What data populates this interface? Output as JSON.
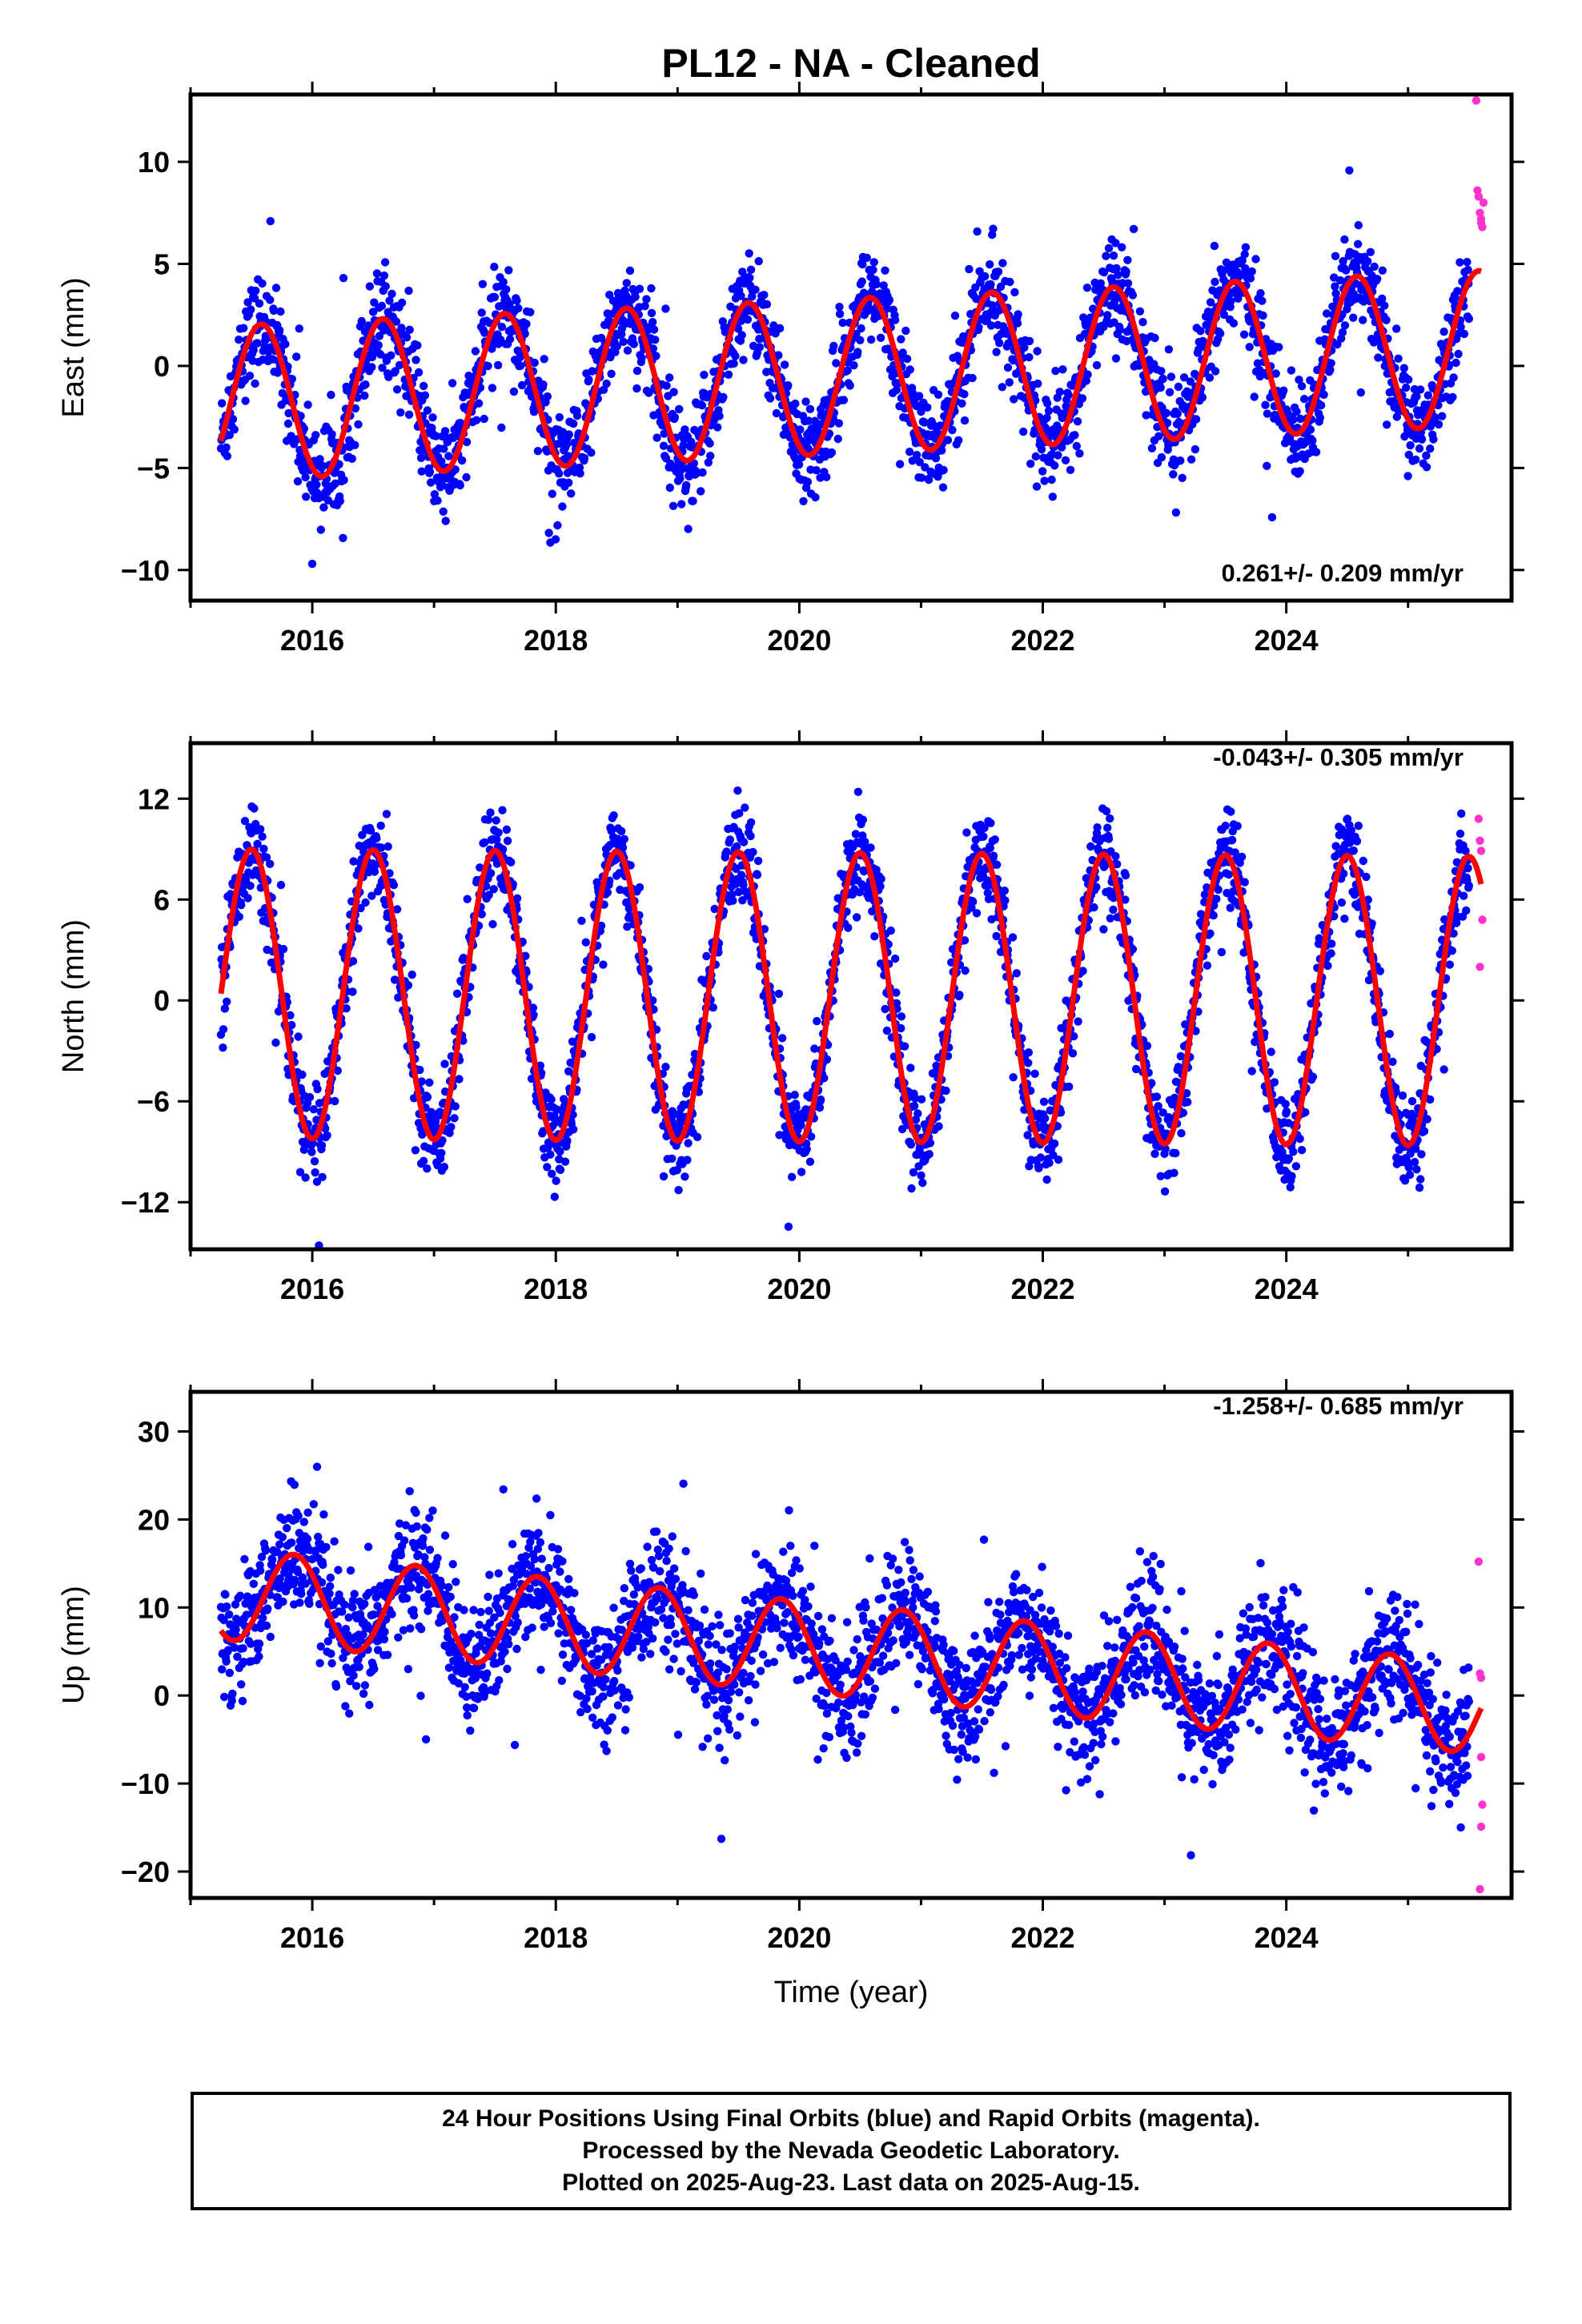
{
  "chart_data": [
    {
      "type": "scatter",
      "title": "PL12  - NA - Cleaned",
      "ylabel": "East (mm)",
      "xlabel": "",
      "xlim": [
        2015.0,
        2025.85
      ],
      "ylim": [
        -11.5,
        13.3
      ],
      "x_ticks": [
        2016,
        2018,
        2020,
        2022,
        2024
      ],
      "y_ticks": [
        -10,
        -5,
        0,
        5,
        10
      ],
      "rate_label": "0.261+/- 0.209 mm/yr",
      "grid": false,
      "model": {
        "start": 2015.25,
        "end": 2025.6,
        "offset": -0.6,
        "trend": 0.261,
        "amplitude": 3.8,
        "peak_phase": 0.58
      },
      "series": [
        {
          "name": "Final Orbits",
          "color": "#0000ff",
          "start": 2015.25,
          "end": 2025.5,
          "noise": 1.6,
          "count": 2600
        },
        {
          "name": "Rapid Orbits",
          "color": "#ff33cc",
          "x": [
            2025.56,
            2025.57,
            2025.58,
            2025.59,
            2025.6,
            2025.61,
            2025.62,
            2025.6
          ],
          "y": [
            13.0,
            8.6,
            8.3,
            7.5,
            7.0,
            6.8,
            8.0,
            7.2
          ]
        }
      ]
    },
    {
      "type": "scatter",
      "title": "",
      "ylabel": "North (mm)",
      "xlabel": "",
      "xlim": [
        2015.0,
        2025.85
      ],
      "ylim": [
        -14.8,
        15.3
      ],
      "x_ticks": [
        2016,
        2018,
        2020,
        2022,
        2024
      ],
      "y_ticks": [
        -12,
        -6,
        0,
        6,
        12
      ],
      "rate_label": "-0.043+/- 0.305 mm/yr",
      "grid": false,
      "model": {
        "start": 2015.25,
        "end": 2025.6,
        "offset": 0.2,
        "trend": -0.043,
        "amplitude": 8.6,
        "peak_phase": 0.5
      },
      "series": [
        {
          "name": "Final Orbits",
          "color": "#0000ff",
          "start": 2015.25,
          "end": 2025.5,
          "noise": 1.8,
          "count": 2600
        },
        {
          "name": "Rapid Orbits",
          "color": "#ff33cc",
          "x": [
            2025.58,
            2025.59,
            2025.6,
            2025.61,
            2025.59
          ],
          "y": [
            10.8,
            9.5,
            8.9,
            4.8,
            2.0
          ]
        }
      ]
    },
    {
      "type": "scatter",
      "title": "",
      "ylabel": "Up (mm)",
      "xlabel": "Time (year)",
      "xlim": [
        2015.0,
        2025.85
      ],
      "ylim": [
        -23.0,
        34.5
      ],
      "x_ticks": [
        2016,
        2018,
        2020,
        2022,
        2024
      ],
      "y_ticks": [
        -20,
        -10,
        0,
        10,
        20,
        30
      ],
      "rate_label": "-1.258+/- 0.685 mm/yr",
      "grid": false,
      "model": {
        "start": 2015.25,
        "end": 2025.6,
        "offset": 5.6,
        "trend": -1.258,
        "amplitude": 5.2,
        "peak_phase": 0.85
      },
      "series": [
        {
          "name": "Final Orbits",
          "color": "#0000ff",
          "start": 2015.25,
          "end": 2025.5,
          "noise": 4.6,
          "count": 2600
        },
        {
          "name": "Rapid Orbits",
          "color": "#ff33cc",
          "x": [
            2025.58,
            2025.59,
            2025.6,
            2025.61,
            2025.6,
            2025.59,
            2025.6
          ],
          "y": [
            15.2,
            2.5,
            2.0,
            -12.4,
            -14.9,
            -22.0,
            -7.0
          ]
        }
      ]
    }
  ],
  "footer": {
    "line1": "24 Hour Positions Using Final Orbits (blue) and Rapid Orbits (magenta).",
    "line2": "Processed by the Nevada Geodetic Laboratory.",
    "line3": "Plotted on 2025-Aug-23. Last data on 2025-Aug-15."
  }
}
